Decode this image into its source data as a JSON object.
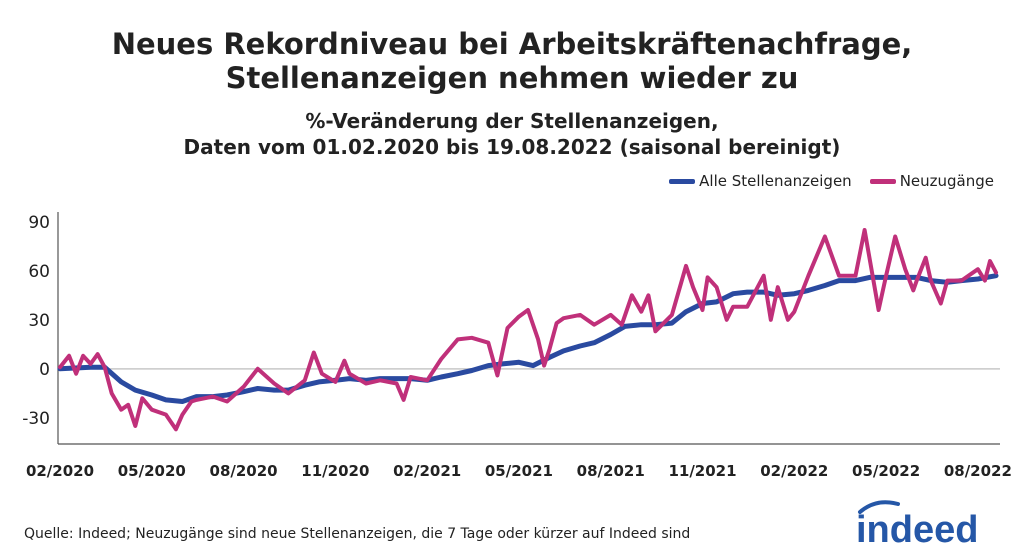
{
  "chart_data": {
    "type": "line",
    "title": "Neues Rekordniveau bei Arbeitskräftenachfrage, Stellenanzeigen nehmen wieder zu",
    "title_lines": [
      "Neues Rekordniveau bei Arbeitskräftenachfrage,",
      "Stellenanzeigen nehmen wieder zu"
    ],
    "subtitle_lines": [
      "%-Veränderung der Stellenanzeigen,",
      "Daten vom 01.02.2020 bis 19.08.2022 (saisonal bereinigt)"
    ],
    "xlabel": "",
    "ylabel": "",
    "xlim": [
      "2020-02-01",
      "2022-08-19"
    ],
    "ylim": [
      -46,
      96
    ],
    "y_ticks": [
      90,
      60,
      30,
      0,
      -30
    ],
    "y_tick_labels": [
      "90",
      "60",
      "30",
      "0",
      "-30"
    ],
    "x_ticks": [
      "2020-02-01",
      "2020-05-01",
      "2020-08-01",
      "2020-11-01",
      "2021-02-01",
      "2021-05-01",
      "2021-08-01",
      "2021-11-01",
      "2022-02-01",
      "2022-05-01",
      "2022-08-01"
    ],
    "x_tick_labels": [
      "02/2020",
      "05/2020",
      "08/2020",
      "11/2020",
      "02/2021",
      "05/2021",
      "08/2021",
      "11/2021",
      "02/2022",
      "05/2022",
      "08/2022"
    ],
    "grid": "zero line only",
    "legend_position": "top-right",
    "series": [
      {
        "name": "Alle Stellenanzeigen",
        "color": "#2a4aa0",
        "points": [
          [
            "2020-02-01",
            0
          ],
          [
            "2020-03-01",
            1
          ],
          [
            "2020-03-15",
            1
          ],
          [
            "2020-04-01",
            -8
          ],
          [
            "2020-04-15",
            -13
          ],
          [
            "2020-05-01",
            -16
          ],
          [
            "2020-05-15",
            -19
          ],
          [
            "2020-06-01",
            -20
          ],
          [
            "2020-06-15",
            -17
          ],
          [
            "2020-07-01",
            -17
          ],
          [
            "2020-07-15",
            -16
          ],
          [
            "2020-08-01",
            -14
          ],
          [
            "2020-08-15",
            -12
          ],
          [
            "2020-09-01",
            -13
          ],
          [
            "2020-09-15",
            -13
          ],
          [
            "2020-10-01",
            -10
          ],
          [
            "2020-10-15",
            -8
          ],
          [
            "2020-11-01",
            -7
          ],
          [
            "2020-11-15",
            -6
          ],
          [
            "2020-12-01",
            -7
          ],
          [
            "2020-12-15",
            -6
          ],
          [
            "2021-01-01",
            -6
          ],
          [
            "2021-01-15",
            -6
          ],
          [
            "2021-02-01",
            -7
          ],
          [
            "2021-02-15",
            -5
          ],
          [
            "2021-03-01",
            -3
          ],
          [
            "2021-03-15",
            -1
          ],
          [
            "2021-04-01",
            2
          ],
          [
            "2021-04-15",
            3
          ],
          [
            "2021-05-01",
            4
          ],
          [
            "2021-05-15",
            2
          ],
          [
            "2021-06-01",
            7
          ],
          [
            "2021-06-15",
            11
          ],
          [
            "2021-07-01",
            14
          ],
          [
            "2021-07-15",
            16
          ],
          [
            "2021-08-01",
            21
          ],
          [
            "2021-08-15",
            26
          ],
          [
            "2021-09-01",
            27
          ],
          [
            "2021-09-15",
            27
          ],
          [
            "2021-10-01",
            28
          ],
          [
            "2021-10-15",
            35
          ],
          [
            "2021-11-01",
            40
          ],
          [
            "2021-11-15",
            41
          ],
          [
            "2021-12-01",
            46
          ],
          [
            "2021-12-15",
            47
          ],
          [
            "2022-01-01",
            47
          ],
          [
            "2022-01-15",
            45
          ],
          [
            "2022-02-01",
            46
          ],
          [
            "2022-02-15",
            48
          ],
          [
            "2022-03-01",
            51
          ],
          [
            "2022-03-15",
            54
          ],
          [
            "2022-04-01",
            54
          ],
          [
            "2022-04-15",
            56
          ],
          [
            "2022-05-01",
            56
          ],
          [
            "2022-05-15",
            56
          ],
          [
            "2022-06-01",
            56
          ],
          [
            "2022-06-15",
            54
          ],
          [
            "2022-07-01",
            53
          ],
          [
            "2022-07-15",
            54
          ],
          [
            "2022-08-01",
            55
          ],
          [
            "2022-08-19",
            57
          ]
        ]
      },
      {
        "name": "Neuzugänge",
        "color": "#c0307a",
        "points": [
          [
            "2020-02-01",
            1
          ],
          [
            "2020-02-10",
            8
          ],
          [
            "2020-02-17",
            -3
          ],
          [
            "2020-02-24",
            8
          ],
          [
            "2020-03-01",
            3
          ],
          [
            "2020-03-08",
            9
          ],
          [
            "2020-03-15",
            1
          ],
          [
            "2020-03-22",
            -15
          ],
          [
            "2020-04-01",
            -25
          ],
          [
            "2020-04-08",
            -22
          ],
          [
            "2020-04-15",
            -35
          ],
          [
            "2020-04-22",
            -18
          ],
          [
            "2020-05-01",
            -25
          ],
          [
            "2020-05-15",
            -28
          ],
          [
            "2020-05-25",
            -37
          ],
          [
            "2020-06-01",
            -28
          ],
          [
            "2020-06-10",
            -20
          ],
          [
            "2020-06-15",
            -19
          ],
          [
            "2020-07-01",
            -17
          ],
          [
            "2020-07-15",
            -20
          ],
          [
            "2020-08-01",
            -11
          ],
          [
            "2020-08-15",
            0
          ],
          [
            "2020-09-01",
            -9
          ],
          [
            "2020-09-15",
            -15
          ],
          [
            "2020-10-01",
            -7
          ],
          [
            "2020-10-10",
            10
          ],
          [
            "2020-10-18",
            -3
          ],
          [
            "2020-11-01",
            -8
          ],
          [
            "2020-11-10",
            5
          ],
          [
            "2020-11-15",
            -3
          ],
          [
            "2020-12-01",
            -9
          ],
          [
            "2020-12-15",
            -7
          ],
          [
            "2021-01-01",
            -9
          ],
          [
            "2021-01-08",
            -19
          ],
          [
            "2021-01-15",
            -5
          ],
          [
            "2021-02-01",
            -7
          ],
          [
            "2021-02-15",
            6
          ],
          [
            "2021-03-01",
            18
          ],
          [
            "2021-03-15",
            19
          ],
          [
            "2021-04-01",
            16
          ],
          [
            "2021-04-10",
            -4
          ],
          [
            "2021-04-20",
            25
          ],
          [
            "2021-05-01",
            32
          ],
          [
            "2021-05-10",
            36
          ],
          [
            "2021-05-20",
            18
          ],
          [
            "2021-05-26",
            2
          ],
          [
            "2021-06-01",
            12
          ],
          [
            "2021-06-08",
            28
          ],
          [
            "2021-06-15",
            31
          ],
          [
            "2021-07-01",
            33
          ],
          [
            "2021-07-15",
            27
          ],
          [
            "2021-08-01",
            33
          ],
          [
            "2021-08-12",
            27
          ],
          [
            "2021-08-22",
            45
          ],
          [
            "2021-09-01",
            35
          ],
          [
            "2021-09-08",
            45
          ],
          [
            "2021-09-15",
            23
          ],
          [
            "2021-10-01",
            33
          ],
          [
            "2021-10-15",
            63
          ],
          [
            "2021-10-22",
            50
          ],
          [
            "2021-11-01",
            36
          ],
          [
            "2021-11-06",
            56
          ],
          [
            "2021-11-15",
            50
          ],
          [
            "2021-11-25",
            30
          ],
          [
            "2021-12-01",
            38
          ],
          [
            "2021-12-15",
            38
          ],
          [
            "2022-01-01",
            57
          ],
          [
            "2022-01-08",
            30
          ],
          [
            "2022-01-15",
            50
          ],
          [
            "2022-01-25",
            30
          ],
          [
            "2022-02-01",
            35
          ],
          [
            "2022-02-15",
            57
          ],
          [
            "2022-03-01",
            81
          ],
          [
            "2022-03-15",
            57
          ],
          [
            "2022-04-01",
            57
          ],
          [
            "2022-04-10",
            85
          ],
          [
            "2022-04-24",
            36
          ],
          [
            "2022-05-01",
            57
          ],
          [
            "2022-05-10",
            81
          ],
          [
            "2022-05-20",
            61
          ],
          [
            "2022-05-28",
            48
          ],
          [
            "2022-06-01",
            54
          ],
          [
            "2022-06-10",
            68
          ],
          [
            "2022-06-15",
            54
          ],
          [
            "2022-06-25",
            40
          ],
          [
            "2022-07-01",
            54
          ],
          [
            "2022-07-15",
            54
          ],
          [
            "2022-08-01",
            61
          ],
          [
            "2022-08-08",
            54
          ],
          [
            "2022-08-13",
            66
          ],
          [
            "2022-08-19",
            59
          ]
        ]
      }
    ]
  },
  "footer": {
    "source": "Quelle: Indeed; Neuzugänge sind neue Stellenanzeigen, die 7 Tage oder kürzer auf Indeed sind"
  },
  "logo": {
    "text": "indeed",
    "color": "#2557a7"
  }
}
